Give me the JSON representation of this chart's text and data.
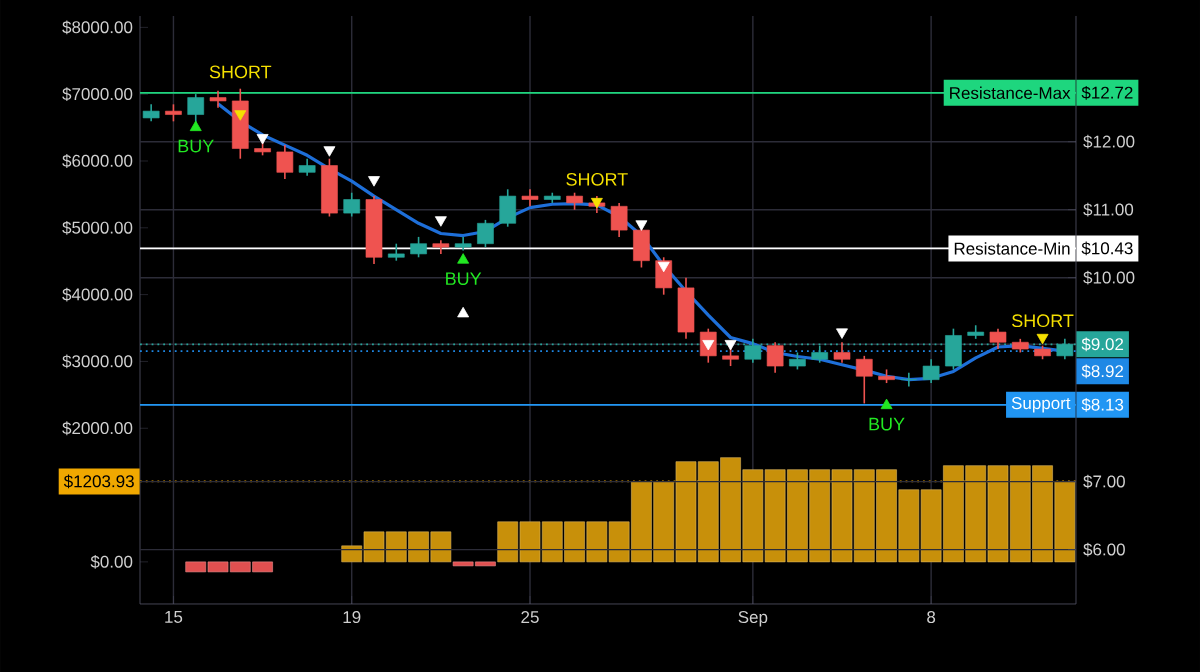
{
  "chart_data": {
    "type": "candlestick",
    "categories": [
      null,
      "15",
      null,
      null,
      null,
      null,
      null,
      null,
      null,
      "19",
      null,
      null,
      null,
      null,
      null,
      null,
      null,
      "25",
      null,
      null,
      null,
      null,
      null,
      null,
      null,
      null,
      null,
      "Sep",
      null,
      null,
      null,
      null,
      null,
      null,
      null,
      "8",
      null,
      null,
      null,
      null,
      null,
      null
    ],
    "ylim": [
      -630,
      8170
    ],
    "yticks": [
      {
        "value": 0,
        "label": "$0.00"
      },
      {
        "value": 1203.93,
        "label": "$1203.93"
      },
      {
        "value": 2000,
        "label": "$2000.00"
      },
      {
        "value": 3000,
        "label": "$3000.00"
      },
      {
        "value": 4000,
        "label": "$4000.00"
      },
      {
        "value": 5000,
        "label": "$5000.00"
      },
      {
        "value": 6000,
        "label": "$6000.00"
      },
      {
        "value": 7000,
        "label": "$7000.00"
      },
      {
        "value": 8000,
        "label": "$8000.00"
      }
    ],
    "y2lim": [
      5.2,
      13.85
    ],
    "y2ticks": [
      {
        "value": 6,
        "label": "$6.00"
      },
      {
        "value": 7,
        "label": "$7.00"
      },
      {
        "value": 8.13,
        "label": "$8.13"
      },
      {
        "value": 9.02,
        "label": "$9.02"
      },
      {
        "value": 10,
        "label": "$10.00"
      },
      {
        "value": 10.43,
        "label": "$10.43"
      },
      {
        "value": 11,
        "label": "$11.00"
      },
      {
        "value": 12,
        "label": "$12.00"
      },
      {
        "value": 12.72,
        "label": "$12.72"
      }
    ],
    "grid": true,
    "ref_lines": [
      {
        "axis": "y2",
        "value": 12.72,
        "label": "Resistance-Max",
        "color": "#1ed67e",
        "line_style": "solid"
      },
      {
        "axis": "y2",
        "value": 10.43,
        "label": "Resistance-Min",
        "color": "#ffffff",
        "line_style": "solid"
      },
      {
        "axis": "y2",
        "value": 9.02,
        "color": "#26a69a",
        "line_style": "dotted"
      },
      {
        "axis": "y2",
        "value": 8.92,
        "label": "$8.92",
        "color": "#1e88e5",
        "line_style": "dotted"
      },
      {
        "axis": "y2",
        "value": 8.13,
        "label": "Support",
        "color": "#2196f3",
        "line_style": "solid"
      },
      {
        "axis": "y",
        "value": 1203.93,
        "color": "#f0a800",
        "line_style": "dotted"
      }
    ],
    "series": [
      {
        "axis": "y2",
        "ohlc": [
          [
            12.35,
            12.55,
            12.3,
            12.45
          ],
          [
            12.45,
            12.55,
            12.3,
            12.4
          ],
          [
            12.4,
            12.7,
            12.25,
            12.65
          ],
          [
            12.65,
            12.75,
            12.5,
            12.6
          ],
          [
            12.6,
            12.78,
            11.75,
            11.9
          ],
          [
            11.9,
            12.0,
            11.8,
            11.85
          ],
          [
            11.85,
            11.95,
            11.45,
            11.55
          ],
          [
            11.55,
            11.75,
            11.5,
            11.65
          ],
          [
            11.65,
            11.75,
            10.9,
            10.95
          ],
          [
            10.95,
            11.25,
            10.9,
            11.15
          ],
          [
            11.15,
            11.2,
            10.2,
            10.3
          ],
          [
            10.3,
            10.5,
            10.25,
            10.35
          ],
          [
            10.35,
            10.6,
            10.3,
            10.5
          ],
          [
            10.5,
            10.55,
            10.35,
            10.45
          ],
          [
            10.45,
            10.6,
            10.4,
            10.5
          ],
          [
            10.5,
            10.85,
            10.45,
            10.8
          ],
          [
            10.8,
            11.3,
            10.75,
            11.2
          ],
          [
            11.2,
            11.3,
            11.05,
            11.15
          ],
          [
            11.15,
            11.25,
            11.1,
            11.2
          ],
          [
            11.2,
            11.25,
            11.0,
            11.1
          ],
          [
            11.1,
            11.2,
            10.95,
            11.05
          ],
          [
            11.05,
            11.1,
            10.6,
            10.7
          ],
          [
            10.7,
            10.75,
            10.15,
            10.25
          ],
          [
            10.25,
            10.3,
            9.75,
            9.85
          ],
          [
            9.85,
            10.0,
            9.1,
            9.2
          ],
          [
            9.2,
            9.25,
            8.75,
            8.85
          ],
          [
            8.85,
            9.0,
            8.7,
            8.8
          ],
          [
            8.8,
            9.1,
            8.75,
            9.0
          ],
          [
            9.0,
            9.05,
            8.6,
            8.7
          ],
          [
            8.7,
            8.9,
            8.65,
            8.8
          ],
          [
            8.8,
            9.0,
            8.75,
            8.9
          ],
          [
            8.9,
            9.05,
            8.75,
            8.8
          ],
          [
            8.8,
            8.85,
            8.15,
            8.55
          ],
          [
            8.55,
            8.65,
            8.45,
            8.5
          ],
          [
            8.5,
            8.6,
            8.4,
            8.5
          ],
          [
            8.5,
            8.8,
            8.45,
            8.7
          ],
          [
            8.7,
            9.25,
            8.65,
            9.15
          ],
          [
            9.15,
            9.3,
            9.1,
            9.2
          ],
          [
            9.2,
            9.25,
            8.95,
            9.05
          ],
          [
            9.05,
            9.1,
            8.9,
            8.95
          ],
          [
            8.95,
            9.0,
            8.8,
            8.85
          ],
          [
            8.85,
            9.1,
            8.8,
            9.02
          ]
        ],
        "colors": [
          "#26a69a",
          "#ef5350",
          "#26a69a",
          "#ef5350",
          "#ef5350",
          "#ef5350",
          "#ef5350",
          "#26a69a",
          "#ef5350",
          "#26a69a",
          "#ef5350",
          "#26a69a",
          "#26a69a",
          "#ef5350",
          "#26a69a",
          "#26a69a",
          "#26a69a",
          "#ef5350",
          "#26a69a",
          "#ef5350",
          "#ef5350",
          "#ef5350",
          "#ef5350",
          "#ef5350",
          "#ef5350",
          "#ef5350",
          "#ef5350",
          "#26a69a",
          "#ef5350",
          "#26a69a",
          "#26a69a",
          "#ef5350",
          "#ef5350",
          "#ef5350",
          "#26a69a",
          "#26a69a",
          "#26a69a",
          "#26a69a",
          "#ef5350",
          "#ef5350",
          "#ef5350",
          "#26a69a"
        ]
      },
      {
        "type": "line",
        "axis": "y2",
        "color": "#1e6fd9",
        "values": [
          null,
          null,
          null,
          12.56,
          12.3,
          12.1,
          11.95,
          11.8,
          11.6,
          11.42,
          11.2,
          11.0,
          10.8,
          10.65,
          10.62,
          10.68,
          10.88,
          11.03,
          11.08,
          11.09,
          11.07,
          10.9,
          10.62,
          10.18,
          9.8,
          9.45,
          9.12,
          9.03,
          8.9,
          8.84,
          8.8,
          8.72,
          8.64,
          8.55,
          8.5,
          8.52,
          8.62,
          8.82,
          8.98,
          9.0,
          8.96,
          8.92
        ]
      },
      {
        "type": "bar",
        "values": [
          0,
          0,
          -150,
          -150,
          -150,
          -150,
          0,
          0,
          0,
          240,
          450,
          450,
          450,
          450,
          -60,
          -60,
          600,
          600,
          600,
          600,
          600,
          600,
          1200,
          1200,
          1500,
          1500,
          1560,
          1380,
          1380,
          1380,
          1380,
          1380,
          1380,
          1380,
          1080,
          1080,
          1440,
          1440,
          1440,
          1440,
          1440,
          1203.93
        ],
        "colors": [
          "#c8900a",
          "#c8900a",
          "#e05050",
          "#e05050",
          "#e05050",
          "#e05050",
          "#c8900a",
          "#c8900a",
          "#c8900a",
          "#c8900a",
          "#c8900a",
          "#c8900a",
          "#c8900a",
          "#c8900a",
          "#e05050",
          "#e05050",
          "#c8900a",
          "#c8900a",
          "#c8900a",
          "#c8900a",
          "#c8900a",
          "#c8900a",
          "#c8900a",
          "#c8900a",
          "#c8900a",
          "#c8900a",
          "#c8900a",
          "#c8900a",
          "#c8900a",
          "#c8900a",
          "#c8900a",
          "#c8900a",
          "#c8900a",
          "#c8900a",
          "#c8900a",
          "#c8900a",
          "#c8900a",
          "#c8900a",
          "#c8900a",
          "#c8900a",
          "#c8900a",
          "#c8900a"
        ]
      },
      {
        "type": "scatter",
        "axis": "y2",
        "marker": "triangle",
        "color": "#22e822",
        "values": [
          null,
          null,
          12.21,
          null,
          null,
          null,
          null,
          null,
          null,
          null,
          null,
          null,
          null,
          null,
          10.26,
          null,
          null,
          null,
          null,
          null,
          null,
          null,
          null,
          null,
          null,
          null,
          null,
          null,
          null,
          null,
          null,
          null,
          null,
          8.12,
          null,
          null,
          null,
          null,
          null,
          null,
          null,
          null
        ],
        "value_labels": [
          null,
          null,
          "BUY",
          null,
          null,
          null,
          null,
          null,
          null,
          null,
          null,
          null,
          null,
          null,
          "BUY",
          null,
          null,
          null,
          null,
          null,
          null,
          null,
          null,
          null,
          null,
          null,
          null,
          null,
          null,
          null,
          null,
          null,
          null,
          "BUY",
          null,
          null,
          null,
          null,
          null,
          null,
          null,
          null
        ]
      },
      {
        "type": "scatter",
        "axis": "y2",
        "marker": "triangle",
        "color": "#f5e000",
        "values": [
          null,
          null,
          null,
          null,
          12.41,
          null,
          null,
          null,
          null,
          null,
          null,
          null,
          null,
          null,
          null,
          null,
          null,
          null,
          null,
          null,
          11.12,
          null,
          null,
          null,
          null,
          null,
          null,
          null,
          null,
          null,
          null,
          null,
          null,
          null,
          null,
          null,
          null,
          null,
          null,
          null,
          9.12,
          null
        ],
        "value_labels": [
          null,
          null,
          null,
          null,
          "SHORT",
          null,
          null,
          null,
          null,
          null,
          null,
          null,
          null,
          null,
          null,
          null,
          null,
          null,
          null,
          null,
          "SHORT",
          null,
          null,
          null,
          null,
          null,
          null,
          null,
          null,
          null,
          null,
          null,
          null,
          null,
          null,
          null,
          null,
          null,
          null,
          null,
          "SHORT",
          null
        ]
      },
      {
        "type": "scatter",
        "axis": "y2",
        "marker": "triangle",
        "color": "#ffffff",
        "values": [
          null,
          null,
          null,
          null,
          null,
          12.06,
          null,
          null,
          11.88,
          null,
          11.44,
          null,
          null,
          10.85,
          9.47,
          null,
          null,
          null,
          null,
          null,
          null,
          null,
          10.79,
          10.18,
          null,
          9.03,
          9.03,
          null,
          null,
          null,
          null,
          9.2,
          null,
          null,
          null,
          null,
          null,
          null,
          null,
          null,
          null,
          null
        ]
      }
    ]
  }
}
